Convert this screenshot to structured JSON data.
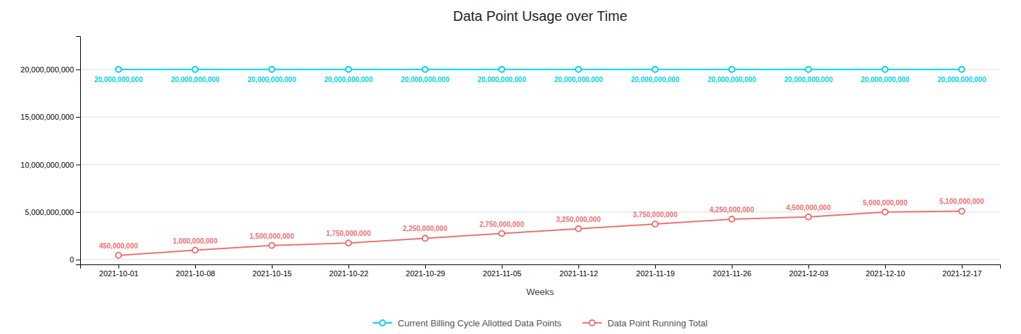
{
  "chart_data": {
    "type": "line",
    "title": "Data Point Usage over Time",
    "xlabel": "Weeks",
    "categories": [
      "2021-10-01",
      "2021-10-08",
      "2021-10-15",
      "2021-10-22",
      "2021-10-29",
      "2021-11-05",
      "2021-11-12",
      "2021-11-19",
      "2021-11-26",
      "2021-12-03",
      "2021-12-10",
      "2021-12-17"
    ],
    "series": [
      {
        "name": "Current Billing Cycle Allotted Data Points",
        "color": "#00d4e8",
        "marker": "circle",
        "values": [
          20000000000,
          20000000000,
          20000000000,
          20000000000,
          20000000000,
          20000000000,
          20000000000,
          20000000000,
          20000000000,
          20000000000,
          20000000000,
          20000000000
        ],
        "value_labels": [
          "20,000,000,000",
          "20,000,000,000",
          "20,000,000,000",
          "20,000,000,000",
          "20,000,000,000",
          "20,000,000,000",
          "20,000,000,000",
          "20,000,000,000",
          "20,000,000,000",
          "20,000,000,000",
          "20,000,000,000",
          "20,000,000,000"
        ]
      },
      {
        "name": "Data Point Running Total",
        "color": "#f07070",
        "marker": "circle",
        "values": [
          450000000,
          1000000000,
          1500000000,
          1750000000,
          2250000000,
          2750000000,
          3250000000,
          3750000000,
          4250000000,
          4500000000,
          5000000000,
          5100000000
        ],
        "value_labels": [
          "450,000,000",
          "1,000,000,000",
          "1,500,000,000",
          "1,750,000,000",
          "2,250,000,000",
          "2,750,000,000",
          "3,250,000,000",
          "3,750,000,000",
          "4,250,000,000",
          "4,500,000,000",
          "5,000,000,000",
          "5,100,000,000"
        ]
      }
    ],
    "ylim": [
      -500000000,
      23500000000
    ],
    "yticks": [
      0,
      {
        "value": 5000000000,
        "label": "5,000,000,000"
      },
      {
        "value": 10000000000,
        "label": "10,000,000,000"
      },
      {
        "value": 15000000000,
        "label": "15,000,000,000"
      },
      {
        "value": 20000000000,
        "label": "20,000,000,000"
      }
    ],
    "grid": true,
    "legend": "bottom",
    "data_labels": true
  }
}
